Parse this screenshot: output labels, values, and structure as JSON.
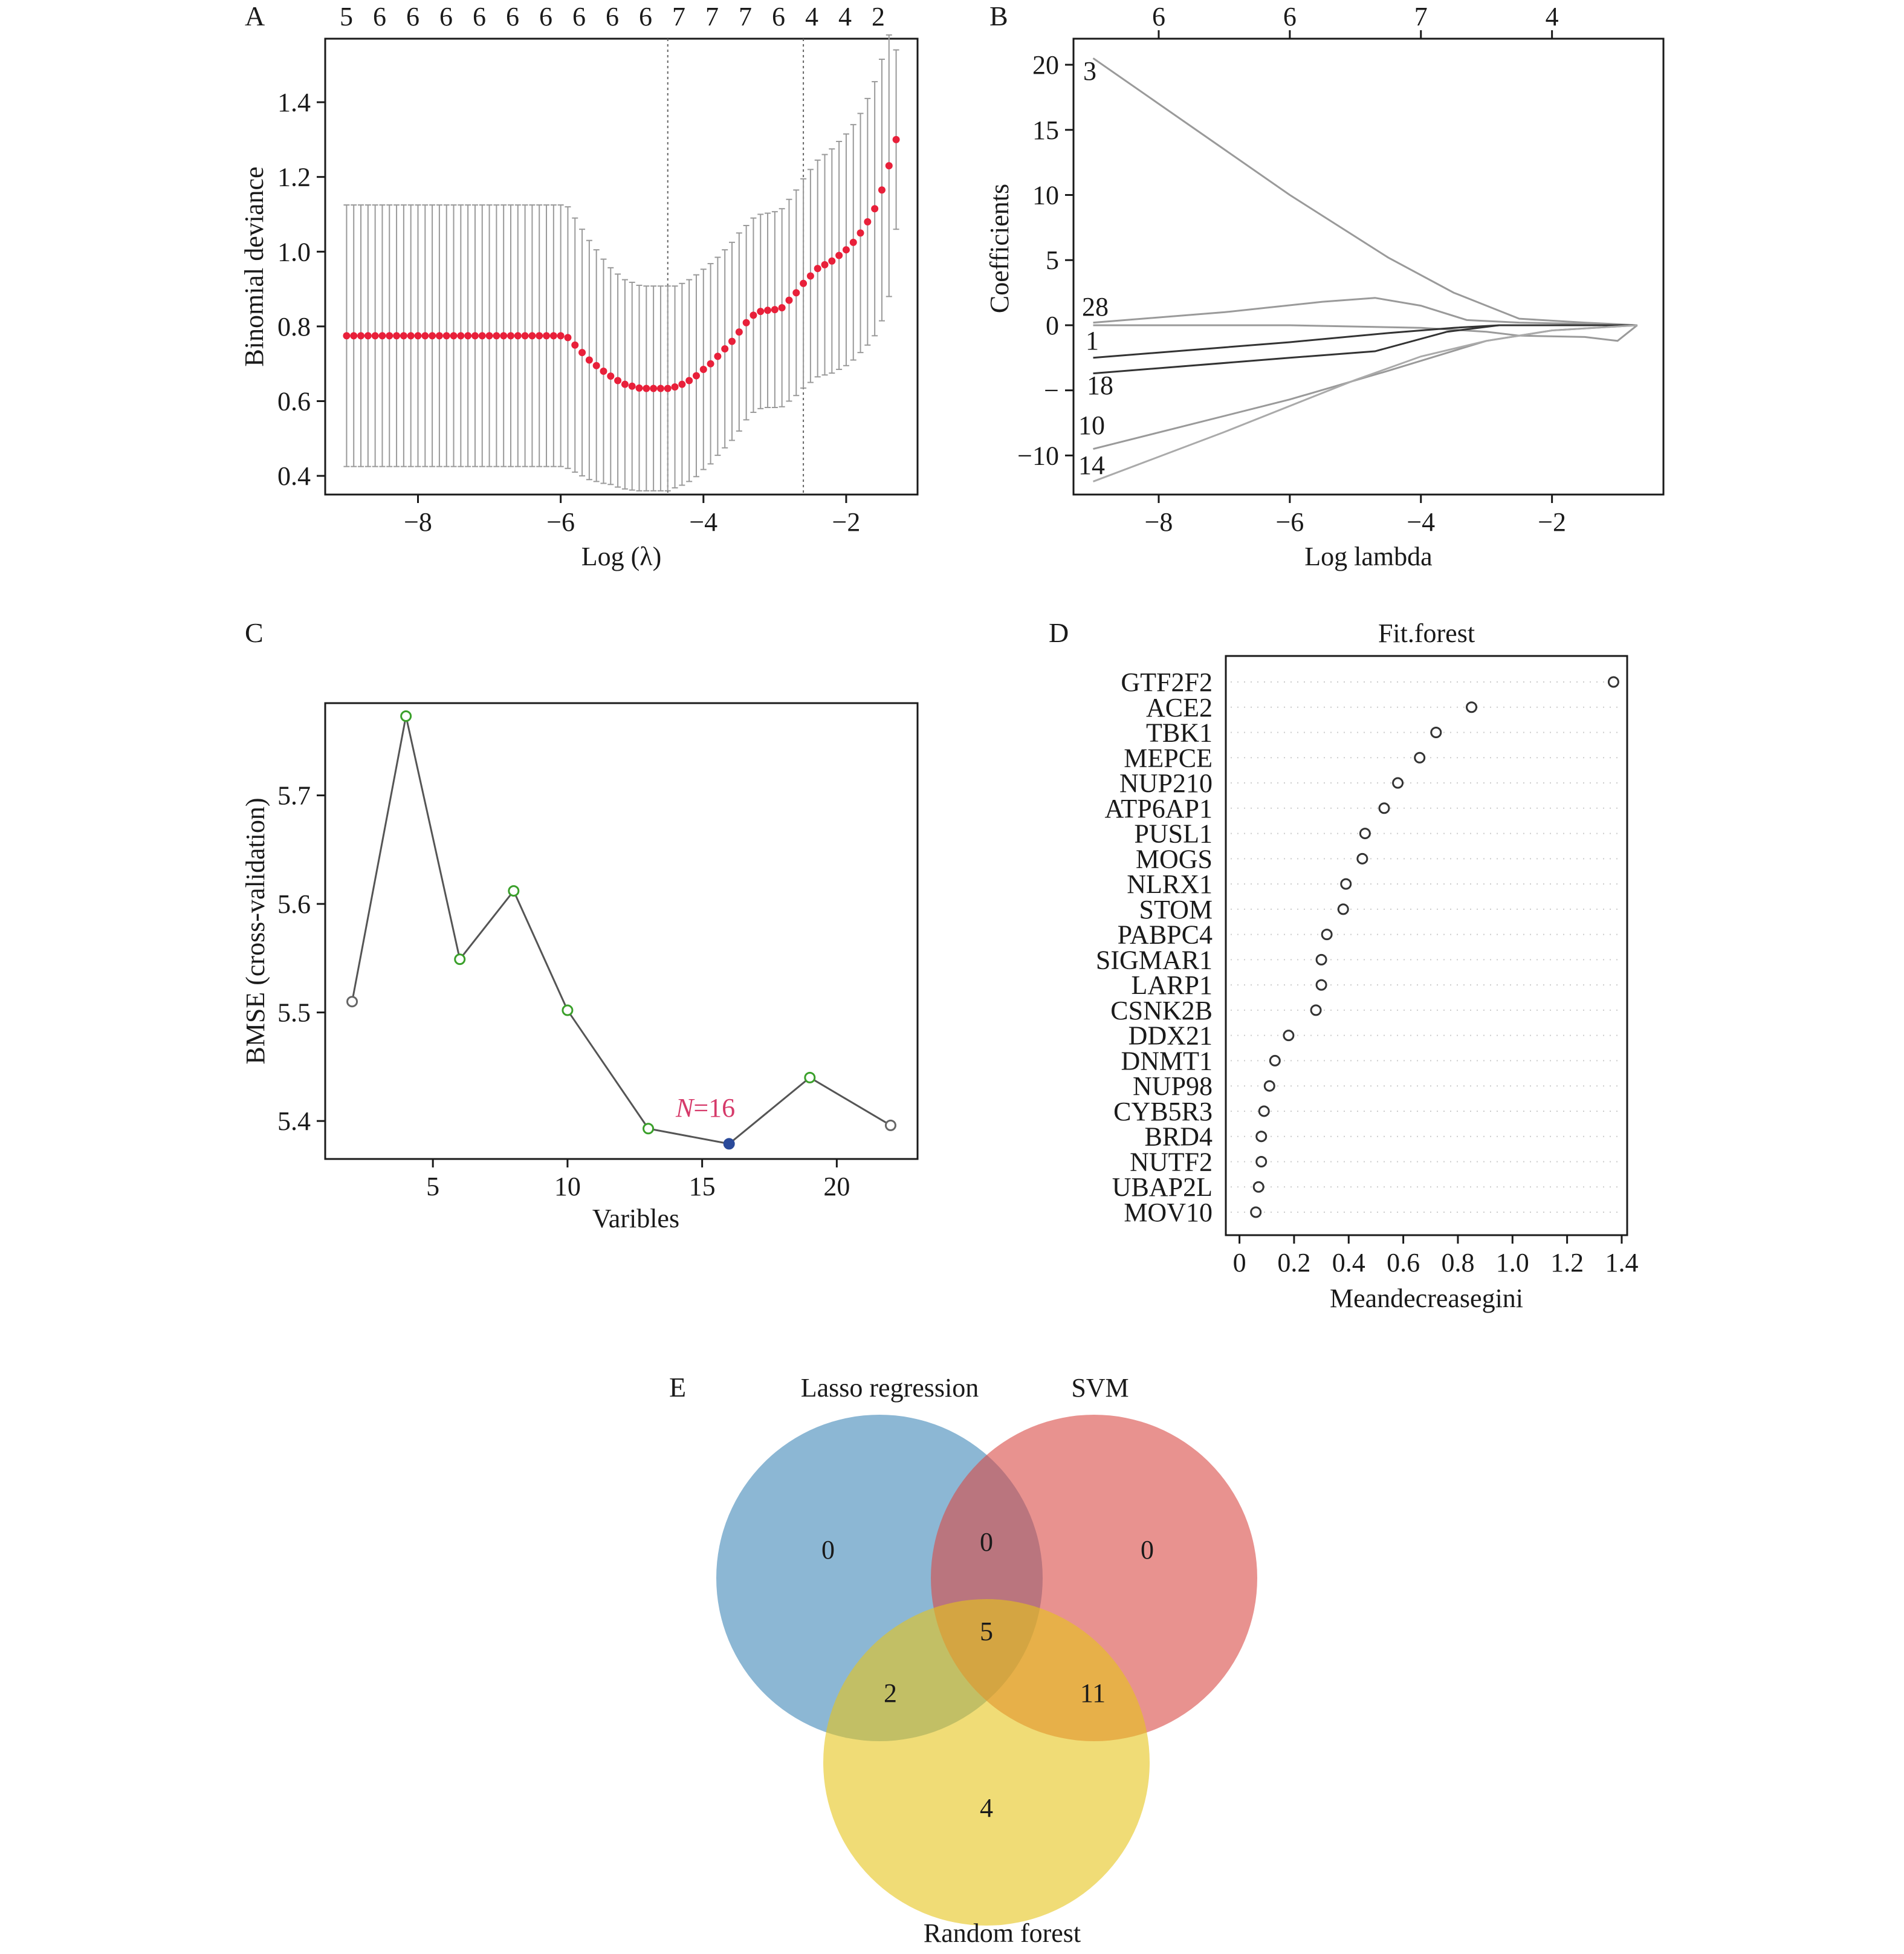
{
  "panels": {
    "A": {
      "label": "A"
    },
    "B": {
      "label": "B"
    },
    "C": {
      "label": "C"
    },
    "D": {
      "label": "D"
    },
    "E": {
      "label": "E"
    }
  },
  "chart_data": [
    {
      "panel": "A",
      "type": "scatter",
      "xlabel": "Log (λ)",
      "ylabel": "Binomial deviance",
      "xlim": [
        -9.3,
        -1.0
      ],
      "ylim": [
        0.35,
        1.57
      ],
      "xticks": [
        -8,
        -6,
        -4,
        -2
      ],
      "yticks": [
        0.4,
        0.6,
        0.8,
        1.0,
        1.2,
        1.4
      ],
      "top_axis_labels": [
        "5",
        "6",
        "6",
        "6",
        "6",
        "6",
        "6",
        "6",
        "6",
        "6",
        "7",
        "7",
        "7",
        "6",
        "4",
        "4",
        "2"
      ],
      "vlines": [
        -4.5,
        -2.6
      ],
      "colors": {
        "points": "#e8203a",
        "errorbars": "#9a9a9a",
        "vlines": "#666666"
      },
      "x": [
        -9.0,
        -8.9,
        -8.8,
        -8.7,
        -8.6,
        -8.5,
        -8.4,
        -8.3,
        -8.2,
        -8.1,
        -8.0,
        -7.9,
        -7.8,
        -7.7,
        -7.6,
        -7.5,
        -7.4,
        -7.3,
        -7.2,
        -7.1,
        -7.0,
        -6.9,
        -6.8,
        -6.7,
        -6.6,
        -6.5,
        -6.4,
        -6.3,
        -6.2,
        -6.1,
        -6.0,
        -5.9,
        -5.8,
        -5.7,
        -5.6,
        -5.5,
        -5.4,
        -5.3,
        -5.2,
        -5.1,
        -5.0,
        -4.9,
        -4.8,
        -4.7,
        -4.6,
        -4.5,
        -4.4,
        -4.3,
        -4.2,
        -4.1,
        -4.0,
        -3.9,
        -3.8,
        -3.7,
        -3.6,
        -3.5,
        -3.4,
        -3.3,
        -3.2,
        -3.1,
        -3.0,
        -2.9,
        -2.8,
        -2.7,
        -2.6,
        -2.5,
        -2.4,
        -2.3,
        -2.2,
        -2.1,
        -2.0,
        -1.9,
        -1.8,
        -1.7,
        -1.6,
        -1.5,
        -1.4,
        -1.3
      ],
      "y": [
        0.775,
        0.775,
        0.775,
        0.775,
        0.775,
        0.775,
        0.775,
        0.775,
        0.775,
        0.775,
        0.775,
        0.775,
        0.775,
        0.775,
        0.775,
        0.775,
        0.775,
        0.775,
        0.775,
        0.775,
        0.775,
        0.775,
        0.775,
        0.775,
        0.775,
        0.775,
        0.775,
        0.775,
        0.775,
        0.775,
        0.775,
        0.77,
        0.75,
        0.73,
        0.71,
        0.695,
        0.68,
        0.667,
        0.655,
        0.645,
        0.64,
        0.635,
        0.634,
        0.634,
        0.634,
        0.634,
        0.638,
        0.645,
        0.655,
        0.668,
        0.685,
        0.7,
        0.72,
        0.74,
        0.76,
        0.785,
        0.81,
        0.83,
        0.84,
        0.843,
        0.845,
        0.85,
        0.87,
        0.89,
        0.915,
        0.935,
        0.955,
        0.965,
        0.975,
        0.99,
        1.005,
        1.025,
        1.05,
        1.08,
        1.115,
        1.165,
        1.23,
        1.3
      ],
      "err": [
        0.35,
        0.35,
        0.35,
        0.35,
        0.35,
        0.35,
        0.35,
        0.35,
        0.35,
        0.35,
        0.35,
        0.35,
        0.35,
        0.35,
        0.35,
        0.35,
        0.35,
        0.35,
        0.35,
        0.35,
        0.35,
        0.35,
        0.35,
        0.35,
        0.35,
        0.35,
        0.35,
        0.35,
        0.35,
        0.35,
        0.35,
        0.35,
        0.34,
        0.33,
        0.32,
        0.31,
        0.3,
        0.29,
        0.285,
        0.28,
        0.278,
        0.275,
        0.274,
        0.274,
        0.274,
        0.274,
        0.27,
        0.27,
        0.27,
        0.27,
        0.268,
        0.268,
        0.265,
        0.265,
        0.265,
        0.265,
        0.26,
        0.26,
        0.26,
        0.26,
        0.262,
        0.265,
        0.27,
        0.275,
        0.28,
        0.285,
        0.29,
        0.295,
        0.3,
        0.305,
        0.31,
        0.315,
        0.32,
        0.33,
        0.34,
        0.35,
        0.35,
        0.24
      ]
    },
    {
      "panel": "B",
      "type": "line",
      "xlabel": "Log lambda",
      "ylabel": "Coefficients",
      "xlim": [
        -9.3,
        -0.3
      ],
      "ylim": [
        -13,
        22
      ],
      "xticks": [
        -8,
        -6,
        -4,
        -2
      ],
      "yticks": [
        -10,
        -5,
        0,
        5,
        10,
        15,
        20
      ],
      "ytick_labels": [
        "−10",
        "−",
        "0",
        "5",
        "10",
        "15",
        "20"
      ],
      "top_axis_labels": [
        "6",
        "6",
        "7",
        "4"
      ],
      "top_axis_positions": [
        -8,
        -6,
        -4,
        -2
      ],
      "series": [
        {
          "name": "3",
          "color": "#9a9a9a",
          "x": [
            -9.0,
            -8.0,
            -6.0,
            -4.5,
            -3.5,
            -2.5,
            -1.5,
            -0.7
          ],
          "y": [
            20.5,
            17.0,
            10.0,
            5.2,
            2.5,
            0.5,
            0.2,
            0.0
          ]
        },
        {
          "name": "28",
          "color": "#9a9a9a",
          "x": [
            -9.0,
            -7.0,
            -5.5,
            -4.7,
            -4.0,
            -3.3,
            -2.5,
            -1.5,
            -0.7
          ],
          "y": [
            0.2,
            1.0,
            1.8,
            2.1,
            1.5,
            0.4,
            0.2,
            0.1,
            0.0
          ]
        },
        {
          "name": "",
          "color": "#9a9a9a",
          "x": [
            -9.0,
            -6.0,
            -4.0,
            -3.0,
            -2.5,
            -1.5,
            -1.0,
            -0.7
          ],
          "y": [
            0.0,
            0.0,
            -0.2,
            -0.5,
            -0.8,
            -0.9,
            -1.2,
            0.0
          ]
        },
        {
          "name": "1",
          "color": "#333333",
          "x": [
            -9.0,
            -6.0,
            -4.5,
            -3.5,
            -2.8,
            -2.0,
            -0.7
          ],
          "y": [
            -2.5,
            -1.3,
            -0.6,
            -0.2,
            0.0,
            0.0,
            0.0
          ]
        },
        {
          "name": "18",
          "color": "#333333",
          "x": [
            -9.0,
            -6.0,
            -4.7,
            -3.6,
            -2.8,
            -2.0,
            -0.7
          ],
          "y": [
            -3.7,
            -2.5,
            -2.0,
            -0.5,
            0.0,
            0.0,
            0.0
          ]
        },
        {
          "name": "10",
          "color": "#9a9a9a",
          "x": [
            -9.0,
            -6.0,
            -4.5,
            -3.0,
            -2.0,
            -0.7
          ],
          "y": [
            -9.5,
            -5.7,
            -3.5,
            -1.2,
            -0.4,
            0.0
          ]
        },
        {
          "name": "14",
          "color": "#aaaaaa",
          "x": [
            -9.0,
            -7.0,
            -5.0,
            -4.0,
            -3.0,
            -2.0,
            -0.7
          ],
          "y": [
            -12.0,
            -8.2,
            -4.2,
            -2.4,
            -1.2,
            -0.4,
            0.0
          ]
        }
      ]
    },
    {
      "panel": "C",
      "type": "line",
      "xlabel": "Varibles",
      "ylabel": "BMSE (cross-validation)",
      "xlim": [
        1,
        23
      ],
      "ylim": [
        5.365,
        5.785
      ],
      "xticks": [
        5,
        10,
        15,
        20
      ],
      "yticks": [
        5.4,
        5.5,
        5.6,
        5.7
      ],
      "annotation": {
        "text_var": "N",
        "text_rest": "=16",
        "color": "#d63a6a"
      },
      "x": [
        2,
        4,
        6,
        8,
        10,
        13,
        16,
        19,
        22
      ],
      "y": [
        5.51,
        5.773,
        5.549,
        5.612,
        5.502,
        5.393,
        5.379,
        5.44,
        5.396
      ],
      "point_colors": [
        "#666666",
        "#3aa02a",
        "#3aa02a",
        "#3aa02a",
        "#3aa02a",
        "#3aa02a",
        "#2a4a9a",
        "#3aa02a",
        "#666666"
      ]
    },
    {
      "panel": "D",
      "type": "scatter",
      "title": "Fit.forest",
      "xlabel": "Meandecreasegini",
      "xlim": [
        -0.05,
        1.42
      ],
      "xticks": [
        0,
        0.2,
        0.4,
        0.6,
        0.8,
        1.0,
        1.2,
        1.4
      ],
      "xtick_labels": [
        "0",
        "0.2",
        "0.4",
        "0.6",
        "0.8",
        "1.0",
        "1.2",
        "1.4"
      ],
      "categories": [
        "GTF2F2",
        "ACE2",
        "TBK1",
        "MEPCE",
        "NUP210",
        "ATP6AP1",
        "PUSL1",
        "MOGS",
        "NLRX1",
        "STOM",
        "PABPC4",
        "SIGMAR1",
        "LARP1",
        "CSNK2B",
        "DDX21",
        "DNMT1",
        "NUP98",
        "CYB5R3",
        "BRD4",
        "NUTF2",
        "UBAP2L",
        "MOV10"
      ],
      "values": [
        1.37,
        0.85,
        0.72,
        0.66,
        0.58,
        0.53,
        0.46,
        0.45,
        0.39,
        0.38,
        0.32,
        0.3,
        0.3,
        0.28,
        0.18,
        0.13,
        0.11,
        0.09,
        0.08,
        0.08,
        0.07,
        0.06
      ]
    },
    {
      "panel": "E",
      "type": "venn",
      "sets": [
        {
          "name": "Lasso regression",
          "color": "#3f87b8"
        },
        {
          "name": "SVM",
          "color": "#d94a45"
        },
        {
          "name": "Random forest",
          "color": "#e6c41a"
        }
      ],
      "regions": {
        "lasso_only": "0",
        "svm_only": "0",
        "lasso_svm": "0",
        "all_three": "5",
        "lasso_rf": "2",
        "svm_rf": "11",
        "rf_only": "4"
      }
    }
  ]
}
